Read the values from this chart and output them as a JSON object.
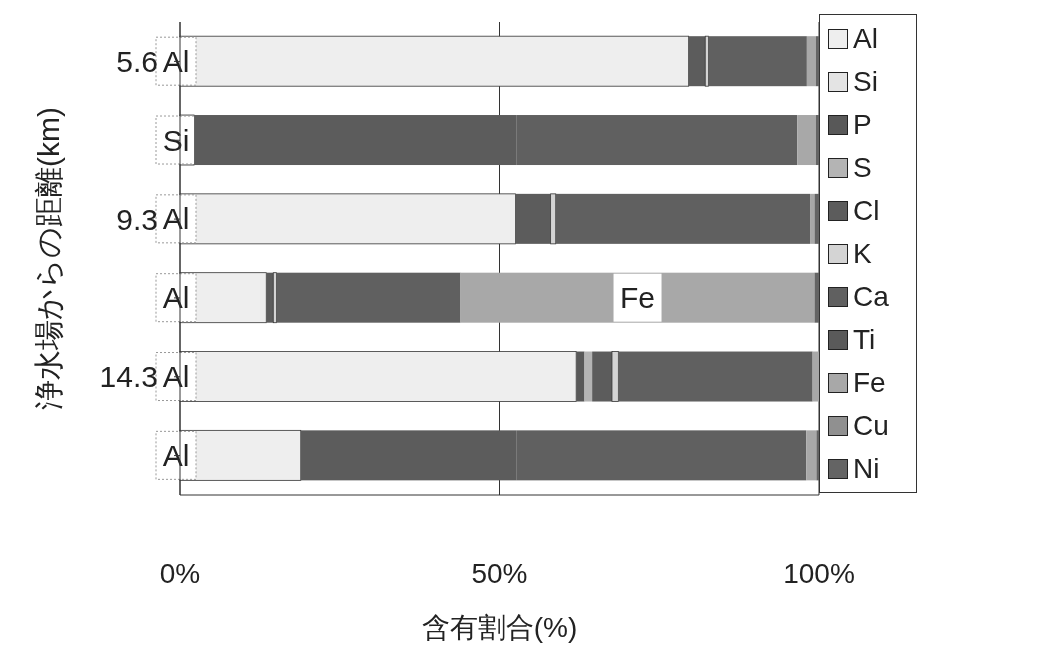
{
  "chart_data": {
    "type": "bar",
    "orientation": "horizontal",
    "stacked": true,
    "xlabel": "含有割合(%)",
    "ylabel": "浄水場からの距離(km)",
    "categories": [
      "5.6",
      null,
      "9.3",
      null,
      "14.3",
      null
    ],
    "xlim": [
      0,
      100
    ],
    "xticks": [
      {
        "value": 0,
        "label": "0%"
      },
      {
        "value": 50,
        "label": "50%"
      },
      {
        "value": 100,
        "label": "100%"
      }
    ],
    "grid": "x",
    "legend": "right",
    "series": [
      {
        "name": "Al",
        "color": "#eeeeee",
        "values": [
          79.6,
          0,
          52.5,
          13.5,
          62.0,
          18.9
        ],
        "value_labels": [
          "Al",
          null,
          "Al",
          "Al",
          "Al",
          "Al"
        ]
      },
      {
        "name": "Si",
        "color": "#e4e4e4",
        "values": [
          0,
          2.2,
          0,
          0,
          0,
          0
        ],
        "value_labels": [
          null,
          "Si",
          null,
          null,
          null,
          null
        ]
      },
      {
        "name": "P",
        "color": "#585858",
        "values": [
          0,
          0,
          0,
          0,
          1.3,
          0
        ]
      },
      {
        "name": "S",
        "color": "#b4b4b4",
        "values": [
          0,
          0,
          0,
          0,
          1.2,
          0
        ]
      },
      {
        "name": "Cl",
        "color": "#5c5c5c",
        "values": [
          2.6,
          50.5,
          5.5,
          1.1,
          3.1,
          33.8
        ]
      },
      {
        "name": "K",
        "color": "#d4d4d4",
        "values": [
          0.5,
          0,
          0.8,
          0.5,
          1.0,
          0
        ]
      },
      {
        "name": "Ca",
        "color": "#606060",
        "values": [
          15.4,
          43.9,
          39.8,
          28.8,
          30.4,
          45.3
        ]
      },
      {
        "name": "Ti",
        "color": "#5a5a5a",
        "values": [
          0,
          0,
          0,
          0,
          0,
          0
        ]
      },
      {
        "name": "Fe",
        "color": "#a8a8a8",
        "values": [
          1.4,
          2.9,
          0.7,
          55.4,
          1.0,
          1.6
        ],
        "value_labels": [
          null,
          null,
          null,
          "Fe",
          null,
          null
        ]
      },
      {
        "name": "Cu",
        "color": "#909090",
        "values": [
          0,
          0,
          0,
          0,
          0,
          0
        ]
      },
      {
        "name": "Ni",
        "color": "#646464",
        "values": [
          0.5,
          0.5,
          0.7,
          0.7,
          0,
          0.4
        ]
      }
    ]
  }
}
